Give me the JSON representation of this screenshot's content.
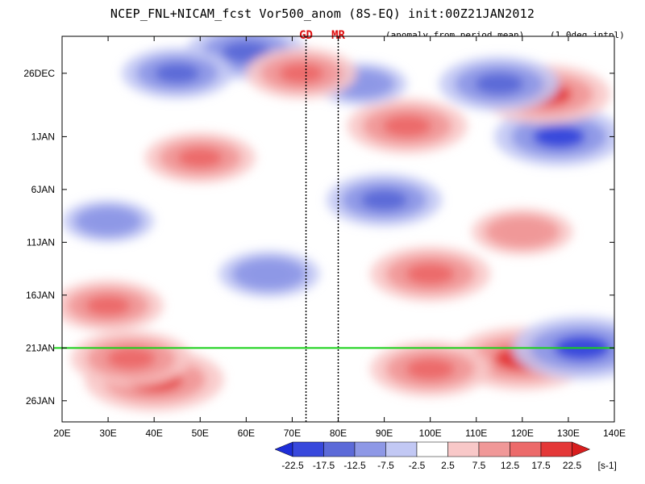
{
  "chart_data": {
    "type": "heatmap",
    "title": "NCEP_FNL+NICAM_fcst Vor500_anom (8S-EQ) init:00Z21JAN2012",
    "note_left": "(anomaly from period mean)",
    "note_right": "(1.0deg intpl)",
    "x_ticks": [
      "20E",
      "30E",
      "40E",
      "50E",
      "60E",
      "70E",
      "80E",
      "90E",
      "100E",
      "110E",
      "120E",
      "130E",
      "140E"
    ],
    "x_range": [
      20,
      140
    ],
    "y_ticks": [
      "26DEC",
      "1JAN",
      "6JAN",
      "11JAN",
      "16JAN",
      "21JAN",
      "26JAN"
    ],
    "y_tick_days": [
      0,
      6,
      11,
      16,
      21,
      26,
      31
    ],
    "y_range_days": [
      -3.5,
      33
    ],
    "colorbar": {
      "levels": [
        "-22.5",
        "-17.5",
        "-12.5",
        "-7.5",
        "-2.5",
        "2.5",
        "7.5",
        "12.5",
        "17.5",
        "22.5"
      ],
      "colors": [
        "#1e2ed8",
        "#3848dc",
        "#5c6ad8",
        "#8e98e6",
        "#c2c8f4",
        "#ffffff",
        "#f8c8c8",
        "#f09898",
        "#ec6a6a",
        "#e43838",
        "#d81e1e"
      ],
      "unit": "[s-1]"
    },
    "markers": [
      {
        "label": "GD",
        "lon": 73
      },
      {
        "label": "MR",
        "lon": 80
      }
    ],
    "init_line_label": "21JAN",
    "fields": [
      {
        "lon": 40,
        "day": 29,
        "value": 20
      },
      {
        "lon": 35,
        "day": 27,
        "value": 16
      },
      {
        "lon": 120,
        "day": 27,
        "value": 20
      },
      {
        "lon": 100,
        "day": 28,
        "value": 16
      },
      {
        "lon": 133,
        "day": 26,
        "value": -20
      },
      {
        "lon": 90,
        "day": 12,
        "value": -15
      },
      {
        "lon": 65,
        "day": 19,
        "value": -12
      },
      {
        "lon": 50,
        "day": 8,
        "value": 14
      },
      {
        "lon": 95,
        "day": 5,
        "value": 16
      },
      {
        "lon": 128,
        "day": 6,
        "value": -18
      },
      {
        "lon": 125,
        "day": 2,
        "value": 18
      },
      {
        "lon": 115,
        "day": 1,
        "value": -16
      },
      {
        "lon": 60,
        "day": -2,
        "value": -16
      },
      {
        "lon": 45,
        "day": 0,
        "value": -14
      },
      {
        "lon": 85,
        "day": 1,
        "value": -10
      },
      {
        "lon": 72,
        "day": 0,
        "value": 14
      },
      {
        "lon": 100,
        "day": 19,
        "value": 16
      },
      {
        "lon": 30,
        "day": 22,
        "value": 14
      },
      {
        "lon": 120,
        "day": 15,
        "value": 12
      },
      {
        "lon": 30,
        "day": 14,
        "value": -10
      }
    ]
  }
}
